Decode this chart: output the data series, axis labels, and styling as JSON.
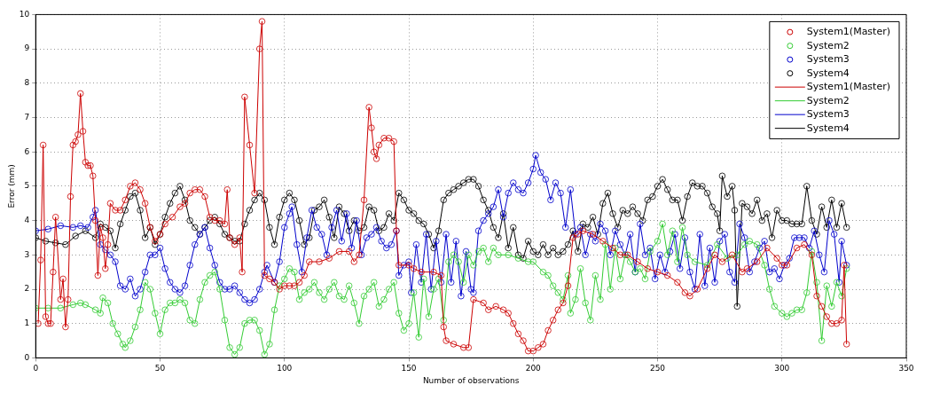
{
  "chart_data": {
    "type": "line",
    "xlabel": "Number of observations",
    "ylabel": "Error (mm)",
    "xlim": [
      0,
      350
    ],
    "xticks": [
      0,
      50,
      100,
      150,
      200,
      250,
      300,
      350
    ],
    "ylim": [
      0,
      10
    ],
    "yticks": [
      0,
      1,
      2,
      3,
      4,
      5,
      6,
      7,
      8,
      9,
      10
    ],
    "grid": true,
    "legend": "top right",
    "marker": "circle",
    "line_style": "solid",
    "series": [
      {
        "name": "System1(Master)",
        "color": "#cc0000",
        "x": [
          1,
          2,
          3,
          4,
          5,
          6,
          7,
          8,
          10,
          11,
          12,
          13,
          14,
          15,
          16,
          17,
          18,
          19,
          20,
          21,
          22,
          23,
          24,
          25,
          26,
          27,
          28,
          29,
          30,
          32,
          34,
          36,
          38,
          40,
          42,
          44,
          46,
          48,
          50,
          52,
          55,
          58,
          60,
          62,
          64,
          66,
          68,
          70,
          72,
          74,
          76,
          77,
          78,
          80,
          82,
          83,
          84,
          86,
          88,
          90,
          91,
          92,
          94,
          96,
          98,
          100,
          102,
          104,
          106,
          108,
          110,
          114,
          118,
          122,
          126,
          128,
          130,
          132,
          134,
          135,
          136,
          137,
          138,
          140,
          142,
          144,
          145,
          146,
          150,
          152,
          155,
          160,
          163,
          164,
          165,
          168,
          172,
          174,
          176,
          180,
          182,
          185,
          188,
          190,
          192,
          194,
          196,
          198,
          200,
          202,
          204,
          206,
          208,
          210,
          212,
          214,
          216,
          218,
          220,
          224,
          228,
          232,
          235,
          238,
          242,
          246,
          250,
          254,
          258,
          261,
          263,
          266,
          270,
          273,
          276,
          280,
          284,
          286,
          290,
          294,
          298,
          300,
          302,
          306,
          309,
          312,
          314,
          316,
          318,
          320,
          322,
          324,
          325,
          326
        ],
        "values": [
          1.0,
          2.85,
          6.2,
          1.2,
          1.0,
          1.0,
          2.5,
          4.1,
          1.7,
          2.3,
          0.9,
          1.7,
          4.7,
          6.2,
          6.3,
          6.5,
          7.7,
          6.6,
          5.7,
          5.6,
          5.6,
          5.3,
          4.0,
          2.4,
          3.8,
          3.5,
          2.6,
          3.3,
          4.5,
          4.3,
          4.3,
          4.6,
          5.0,
          5.1,
          4.9,
          4.5,
          3.8,
          3.4,
          3.6,
          3.9,
          4.1,
          4.4,
          4.5,
          4.8,
          4.9,
          4.9,
          4.7,
          4.1,
          4.0,
          4.0,
          3.9,
          4.9,
          3.5,
          3.3,
          3.5,
          2.5,
          7.6,
          6.2,
          4.8,
          9.0,
          9.8,
          2.4,
          2.3,
          2.2,
          2.0,
          2.1,
          2.1,
          2.1,
          2.2,
          2.4,
          2.8,
          2.8,
          2.9,
          3.1,
          3.1,
          2.8,
          3.0,
          4.6,
          7.3,
          6.7,
          6.0,
          5.8,
          6.2,
          6.4,
          6.4,
          6.3,
          3.7,
          2.7,
          2.7,
          2.6,
          2.5,
          2.5,
          2.4,
          0.9,
          0.5,
          0.4,
          0.3,
          0.3,
          1.7,
          1.6,
          1.4,
          1.5,
          1.4,
          1.3,
          1.0,
          0.7,
          0.5,
          0.2,
          0.2,
          0.3,
          0.4,
          0.8,
          1.1,
          1.4,
          1.6,
          2.1,
          3.5,
          3.6,
          3.7,
          3.6,
          3.4,
          3.2,
          3.0,
          3.0,
          2.8,
          2.6,
          2.5,
          2.4,
          2.2,
          1.9,
          1.8,
          2.0,
          2.6,
          3.0,
          2.8,
          3.0,
          2.5,
          2.6,
          2.8,
          3.2,
          2.9,
          2.7,
          2.7,
          3.2,
          3.3,
          3.0,
          1.8,
          1.5,
          1.2,
          1.0,
          1.0,
          1.1,
          2.7,
          0.4
        ]
      },
      {
        "name": "System2",
        "color": "#33cc33",
        "x": [
          0,
          5,
          10,
          15,
          18,
          20,
          24,
          26,
          27,
          29,
          31,
          33,
          35,
          36,
          38,
          40,
          42,
          44,
          46,
          48,
          50,
          52,
          54,
          56,
          58,
          60,
          62,
          64,
          66,
          68,
          70,
          72,
          74,
          76,
          78,
          80,
          82,
          84,
          86,
          88,
          90,
          92,
          94,
          96,
          98,
          100,
          102,
          104,
          106,
          108,
          110,
          112,
          114,
          116,
          118,
          120,
          122,
          124,
          126,
          128,
          130,
          132,
          134,
          136,
          138,
          140,
          142,
          144,
          146,
          148,
          150,
          152,
          154,
          156,
          158,
          160,
          162,
          164,
          166,
          168,
          170,
          172,
          174,
          176,
          178,
          180,
          182,
          184,
          186,
          190,
          194,
          198,
          200,
          204,
          206,
          208,
          210,
          212,
          214,
          215,
          217,
          219,
          221,
          223,
          225,
          227,
          229,
          231,
          233,
          235,
          237,
          239,
          241,
          243,
          245,
          247,
          250,
          252,
          254,
          256,
          258,
          260,
          262,
          265,
          270,
          274,
          278,
          282,
          285,
          287,
          290,
          293,
          295,
          297,
          300,
          302,
          304,
          306,
          308,
          310,
          312,
          314,
          316,
          318,
          320,
          322,
          324,
          326
        ],
        "values": [
          1.45,
          1.45,
          1.45,
          1.55,
          1.6,
          1.55,
          1.4,
          1.3,
          1.75,
          1.6,
          1.0,
          0.7,
          0.4,
          0.3,
          0.5,
          0.9,
          1.4,
          2.2,
          2.0,
          1.3,
          0.7,
          1.4,
          1.6,
          1.6,
          1.7,
          1.6,
          1.1,
          1.0,
          1.7,
          2.2,
          2.4,
          2.5,
          2.0,
          1.1,
          0.3,
          0.1,
          0.3,
          1.0,
          1.1,
          1.1,
          0.8,
          0.1,
          0.4,
          1.4,
          2.1,
          2.3,
          2.6,
          2.5,
          1.7,
          1.9,
          2.0,
          2.2,
          1.9,
          1.7,
          2.0,
          2.2,
          1.8,
          1.7,
          2.1,
          1.6,
          1.0,
          1.8,
          2.0,
          2.2,
          1.5,
          1.7,
          2.0,
          2.2,
          1.3,
          0.8,
          1.0,
          1.9,
          0.6,
          2.3,
          1.2,
          2.0,
          2.3,
          1.1,
          2.8,
          3.0,
          2.8,
          2.2,
          3.0,
          2.7,
          3.1,
          3.2,
          2.8,
          3.2,
          3.0,
          3.0,
          2.9,
          2.8,
          2.8,
          2.5,
          2.4,
          2.1,
          1.9,
          1.7,
          2.4,
          1.3,
          1.7,
          2.6,
          1.6,
          1.1,
          2.4,
          1.7,
          3.3,
          2.0,
          3.2,
          2.3,
          3.0,
          2.8,
          2.5,
          2.6,
          2.3,
          3.1,
          3.4,
          3.9,
          3.0,
          3.7,
          2.8,
          3.8,
          3.0,
          2.8,
          2.7,
          3.3,
          2.9,
          3.0,
          3.3,
          3.4,
          3.3,
          2.7,
          2.0,
          1.5,
          1.3,
          1.2,
          1.3,
          1.4,
          1.4,
          1.9,
          3.1,
          2.2,
          0.5,
          2.1,
          1.5,
          2.2,
          1.8,
          2.6
        ]
      },
      {
        "name": "System3",
        "color": "#0000cc",
        "x": [
          0,
          5,
          10,
          15,
          18,
          21,
          23,
          24,
          26,
          28,
          30,
          32,
          34,
          36,
          38,
          40,
          42,
          44,
          46,
          48,
          50,
          52,
          54,
          56,
          58,
          60,
          62,
          64,
          66,
          68,
          70,
          72,
          74,
          76,
          78,
          80,
          82,
          84,
          86,
          88,
          90,
          92,
          93,
          96,
          98,
          100,
          102,
          103,
          105,
          107,
          109,
          111,
          113,
          115,
          117,
          119,
          121,
          123,
          125,
          127,
          129,
          131,
          133,
          135,
          137,
          139,
          141,
          143,
          145,
          146,
          148,
          150,
          151,
          153,
          155,
          157,
          159,
          161,
          163,
          165,
          167,
          169,
          171,
          173,
          175,
          176,
          178,
          180,
          182,
          184,
          186,
          188,
          190,
          192,
          194,
          196,
          198,
          200,
          201,
          203,
          205,
          207,
          209,
          211,
          213,
          215,
          217,
          219,
          221,
          223,
          225,
          227,
          229,
          231,
          233,
          235,
          237,
          239,
          241,
          243,
          245,
          247,
          249,
          251,
          253,
          255,
          257,
          259,
          261,
          263,
          265,
          267,
          269,
          271,
          273,
          275,
          277,
          279,
          281,
          283,
          285,
          287,
          289,
          291,
          293,
          295,
          297,
          299,
          301,
          303,
          305,
          307,
          309,
          311,
          313,
          315,
          317,
          319,
          321,
          323,
          324,
          326
        ],
        "values": [
          3.7,
          3.75,
          3.85,
          3.8,
          3.85,
          3.8,
          4.1,
          4.3,
          3.3,
          3.15,
          3.0,
          2.8,
          2.1,
          2.0,
          2.3,
          1.8,
          2.0,
          2.5,
          3.0,
          3.0,
          3.2,
          2.6,
          2.2,
          2.0,
          1.9,
          2.1,
          2.7,
          3.3,
          3.6,
          3.8,
          3.2,
          2.7,
          2.2,
          2.0,
          2.0,
          2.1,
          1.9,
          1.7,
          1.6,
          1.7,
          2.0,
          2.5,
          2.7,
          2.2,
          2.8,
          3.8,
          4.2,
          4.4,
          3.3,
          2.5,
          3.5,
          4.3,
          3.8,
          3.6,
          3.0,
          3.8,
          4.3,
          3.4,
          4.2,
          3.2,
          4.0,
          3.0,
          3.5,
          3.6,
          3.8,
          3.4,
          3.2,
          3.3,
          3.7,
          2.4,
          2.7,
          2.8,
          1.9,
          3.3,
          2.2,
          3.6,
          2.0,
          3.4,
          2.2,
          3.6,
          2.2,
          3.4,
          1.8,
          3.1,
          2.0,
          1.9,
          3.7,
          4.0,
          4.2,
          4.4,
          4.9,
          4.1,
          4.8,
          5.1,
          4.9,
          4.8,
          5.1,
          5.5,
          5.9,
          5.4,
          5.2,
          4.6,
          5.1,
          4.8,
          3.8,
          4.9,
          3.6,
          3.8,
          3.0,
          3.6,
          3.4,
          3.9,
          3.7,
          3.0,
          3.7,
          3.3,
          3.0,
          3.6,
          2.5,
          3.9,
          3.0,
          3.2,
          2.3,
          3.0,
          2.5,
          3.1,
          3.6,
          2.6,
          3.5,
          2.5,
          2.0,
          3.6,
          2.1,
          3.2,
          2.2,
          3.4,
          3.6,
          2.5,
          2.2,
          3.9,
          3.5,
          2.5,
          2.8,
          3.2,
          3.4,
          2.5,
          2.6,
          2.3,
          2.7,
          2.9,
          3.5,
          3.5,
          3.5,
          3.2,
          3.7,
          3.0,
          2.5,
          4.0,
          3.6,
          2.2,
          3.4,
          2.7
        ]
      },
      {
        "name": "System4",
        "color": "#000000",
        "x": [
          0,
          4,
          8,
          12,
          16,
          20,
          24,
          26,
          28,
          30,
          32,
          34,
          36,
          38,
          40,
          42,
          44,
          46,
          48,
          50,
          52,
          54,
          56,
          58,
          60,
          62,
          64,
          66,
          68,
          70,
          72,
          74,
          76,
          78,
          80,
          82,
          84,
          86,
          88,
          90,
          92,
          94,
          96,
          98,
          100,
          102,
          104,
          106,
          108,
          110,
          112,
          114,
          116,
          118,
          120,
          122,
          124,
          126,
          128,
          130,
          132,
          134,
          136,
          138,
          140,
          142,
          144,
          146,
          148,
          150,
          152,
          154,
          156,
          158,
          160,
          162,
          164,
          166,
          168,
          170,
          172,
          174,
          176,
          178,
          180,
          182,
          184,
          186,
          188,
          190,
          192,
          194,
          196,
          198,
          200,
          202,
          204,
          206,
          208,
          210,
          212,
          214,
          216,
          218,
          220,
          222,
          224,
          226,
          228,
          230,
          232,
          234,
          236,
          238,
          240,
          242,
          244,
          246,
          248,
          250,
          252,
          254,
          256,
          258,
          260,
          262,
          264,
          266,
          268,
          270,
          272,
          274,
          275,
          276,
          278,
          280,
          281,
          282,
          284,
          286,
          288,
          290,
          292,
          294,
          296,
          298,
          300,
          302,
          304,
          306,
          308,
          310,
          312,
          314,
          316,
          318,
          320,
          322,
          324,
          326
        ],
        "values": [
          3.5,
          3.4,
          3.35,
          3.3,
          3.55,
          3.7,
          3.5,
          3.9,
          3.8,
          3.7,
          3.2,
          3.9,
          4.3,
          4.7,
          4.8,
          4.3,
          3.5,
          3.8,
          3.3,
          3.6,
          4.1,
          4.5,
          4.8,
          5.0,
          4.6,
          4.0,
          3.8,
          3.6,
          3.8,
          4.0,
          4.1,
          3.9,
          3.6,
          3.5,
          3.4,
          3.4,
          3.9,
          4.3,
          4.6,
          4.8,
          4.6,
          3.8,
          3.3,
          4.1,
          4.6,
          4.8,
          4.6,
          4.0,
          3.3,
          3.5,
          4.3,
          4.4,
          4.6,
          4.1,
          3.5,
          4.4,
          4.2,
          3.7,
          4.0,
          3.7,
          3.8,
          4.4,
          4.3,
          3.7,
          3.8,
          4.2,
          4.0,
          4.8,
          4.6,
          4.3,
          4.2,
          4.0,
          3.9,
          3.6,
          3.2,
          3.7,
          4.6,
          4.8,
          4.9,
          5.0,
          5.1,
          5.2,
          5.2,
          5.0,
          4.6,
          4.3,
          3.8,
          3.5,
          4.2,
          3.2,
          3.8,
          3.0,
          2.9,
          3.4,
          3.1,
          3.0,
          3.3,
          3.0,
          3.2,
          3.0,
          3.1,
          3.3,
          3.7,
          3.1,
          3.9,
          3.8,
          4.1,
          3.6,
          4.5,
          4.8,
          4.2,
          3.8,
          4.3,
          4.2,
          4.4,
          4.2,
          4.0,
          4.6,
          4.7,
          5.0,
          5.2,
          4.9,
          4.6,
          4.6,
          4.0,
          4.7,
          5.1,
          5.0,
          5.0,
          4.8,
          4.4,
          4.2,
          3.7,
          5.3,
          4.7,
          5.0,
          4.3,
          1.5,
          4.5,
          4.4,
          4.2,
          4.6,
          4.0,
          4.2,
          3.5,
          4.3,
          4.0,
          4.0,
          3.9,
          3.9,
          3.9,
          5.0,
          4.0,
          3.6,
          4.4,
          3.8,
          4.6,
          3.8,
          4.5,
          3.8
        ]
      }
    ]
  }
}
